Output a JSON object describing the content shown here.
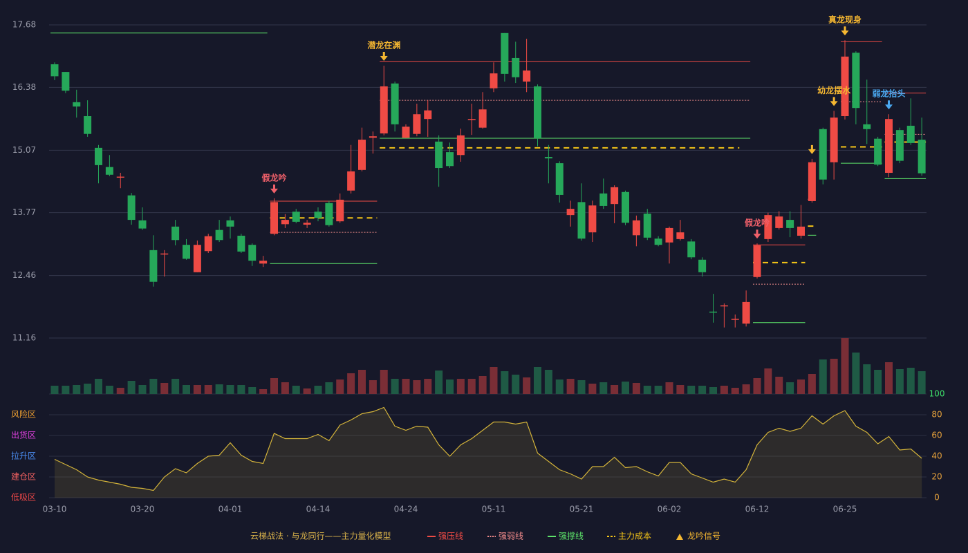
{
  "chart_data": [
    {
      "type": "candlestick",
      "categories": [
        "03-10",
        null,
        null,
        null,
        null,
        null,
        null,
        null,
        "03-20",
        null,
        null,
        null,
        null,
        null,
        null,
        null,
        "04-01",
        null,
        null,
        null,
        null,
        null,
        null,
        null,
        "04-14",
        null,
        null,
        null,
        null,
        null,
        null,
        null,
        "04-24",
        null,
        null,
        null,
        null,
        null,
        null,
        null,
        "05-11",
        null,
        null,
        null,
        null,
        null,
        null,
        null,
        "05-21",
        null,
        null,
        null,
        null,
        null,
        null,
        null,
        "06-02",
        null,
        null,
        null,
        null,
        null,
        null,
        null,
        "06-12",
        null,
        null,
        null,
        null,
        null,
        null,
        null,
        "06-25",
        null,
        null,
        null,
        null,
        null,
        null,
        null
      ],
      "open": [
        16.86,
        16.7,
        16.07,
        15.78,
        15.12,
        14.72,
        14.5,
        14.13,
        13.61,
        12.99,
        12.9,
        13.48,
        13.1,
        12.53,
        12.97,
        13.41,
        13.61,
        13.29,
        13.1,
        12.71,
        13.33,
        13.53,
        13.79,
        13.52,
        13.79,
        13.97,
        13.59,
        14.23,
        14.66,
        15.33,
        15.42,
        16.46,
        15.33,
        15.41,
        15.72,
        15.25,
        15.03,
        14.97,
        15.71,
        15.54,
        16.36,
        17.51,
        16.99,
        16.5,
        16.4,
        14.93,
        14.8,
        13.72,
        13.99,
        13.36,
        14.17,
        13.95,
        14.2,
        13.3,
        13.75,
        13.23,
        13.15,
        13.22,
        13.17,
        12.79,
        11.71,
        11.82,
        11.54,
        11.46,
        12.43,
        13.22,
        13.45,
        13.62,
        13.29,
        14.01,
        15.51,
        14.82,
        15.78,
        17.1,
        15.61,
        15.31,
        14.6,
        15.49,
        15.58,
        15.29
      ],
      "high": [
        16.9,
        16.7,
        16.33,
        16.11,
        15.18,
        14.97,
        14.6,
        14.18,
        13.88,
        13.3,
        12.99,
        13.62,
        13.22,
        13.19,
        13.33,
        13.62,
        13.69,
        13.33,
        13.13,
        12.87,
        14.07,
        13.74,
        13.85,
        13.62,
        13.88,
        14.02,
        14.17,
        15.18,
        15.54,
        15.46,
        16.83,
        16.5,
        15.61,
        16.04,
        16.11,
        15.38,
        15.23,
        15.52,
        16.04,
        16.28,
        16.9,
        17.51,
        17.33,
        17.39,
        16.44,
        15.18,
        14.84,
        14.02,
        14.38,
        14.02,
        14.48,
        14.34,
        14.23,
        13.71,
        13.85,
        13.28,
        13.48,
        13.62,
        13.22,
        12.84,
        12.08,
        11.88,
        11.65,
        12.15,
        13.13,
        13.77,
        13.8,
        13.8,
        13.93,
        14.89,
        15.54,
        15.89,
        17.36,
        17.13,
        16.54,
        15.35,
        15.82,
        15.54,
        16.15,
        15.75
      ],
      "low": [
        16.53,
        16.26,
        15.75,
        15.35,
        14.38,
        14.53,
        14.28,
        13.52,
        13.41,
        12.23,
        12.44,
        13.09,
        12.79,
        12.53,
        12.93,
        13.16,
        13.23,
        12.93,
        12.66,
        12.64,
        13.3,
        13.45,
        13.55,
        13.45,
        13.59,
        13.48,
        13.56,
        14.17,
        14.63,
        15.0,
        15.38,
        15.46,
        15.32,
        15.36,
        15.35,
        14.31,
        14.7,
        14.83,
        15.39,
        15.52,
        16.28,
        16.5,
        16.47,
        16.28,
        15.15,
        14.38,
        13.98,
        13.48,
        13.19,
        13.16,
        13.85,
        13.55,
        13.51,
        13.07,
        13.2,
        13.07,
        12.71,
        13.19,
        12.8,
        12.44,
        11.48,
        11.38,
        11.38,
        11.4,
        12.4,
        13.16,
        13.42,
        13.26,
        13.23,
        13.98,
        14.36,
        14.46,
        15.71,
        15.61,
        15.2,
        14.74,
        14.51,
        14.8,
        15.18,
        14.54
      ],
      "close": [
        16.61,
        16.31,
        15.98,
        15.41,
        14.76,
        14.56,
        14.52,
        13.62,
        13.44,
        12.33,
        12.92,
        13.2,
        12.81,
        13.1,
        13.28,
        13.2,
        13.48,
        12.96,
        12.77,
        12.77,
        13.99,
        13.62,
        13.58,
        13.56,
        13.66,
        13.51,
        14.04,
        14.63,
        15.29,
        15.36,
        16.4,
        15.61,
        15.56,
        15.82,
        15.9,
        14.7,
        14.74,
        15.38,
        15.72,
        15.92,
        16.67,
        16.66,
        16.59,
        16.73,
        15.32,
        14.9,
        14.14,
        13.85,
        13.23,
        13.92,
        13.91,
        14.3,
        13.56,
        13.61,
        13.25,
        13.1,
        13.45,
        13.36,
        12.84,
        12.53,
        11.69,
        11.84,
        11.56,
        11.91,
        13.09,
        13.72,
        13.69,
        13.45,
        13.48,
        14.82,
        14.46,
        15.75,
        17.02,
        15.95,
        15.51,
        14.77,
        15.72,
        14.85,
        15.22,
        14.59
      ],
      "up_color": "#ef4b45",
      "down_color": "#26a85a",
      "ylim": [
        11.16,
        17.68
      ],
      "yticks": [
        11.16,
        12.46,
        13.77,
        15.07,
        16.38,
        17.68
      ],
      "grid": true,
      "legend_title": "云梯战法 · 与龙同行——主力量化模型",
      "legend": [
        {
          "name": "强压线",
          "color": "#ef4b45",
          "dash": "solid",
          "levels": [
            {
              "value": 14.01,
              "from": 20,
              "to": 29
            },
            {
              "value": 16.92,
              "from": 30,
              "to": 63
            },
            {
              "value": 13.1,
              "from": 64,
              "to": 68
            },
            {
              "value": 17.33,
              "from": 72,
              "to": 75
            },
            {
              "value": 16.26,
              "from": 76,
              "to": 79
            }
          ]
        },
        {
          "name": "强弱线",
          "color": "#f08a8a",
          "dash": "dotted",
          "levels": [
            {
              "value": 13.36,
              "from": 20,
              "to": 29
            },
            {
              "value": 16.11,
              "from": 30,
              "to": 63
            },
            {
              "value": 12.28,
              "from": 64,
              "to": 68
            },
            {
              "value": 14.05,
              "from": 69,
              "to": 69
            },
            {
              "value": 16.08,
              "from": 72,
              "to": 75
            },
            {
              "value": 15.4,
              "from": 76,
              "to": 79
            }
          ]
        },
        {
          "name": "强撑线",
          "color": "#5de36a",
          "dash": "solid",
          "levels": [
            {
              "value": 17.51,
              "from": 0,
              "to": 19
            },
            {
              "value": 12.71,
              "from": 20,
              "to": 29
            },
            {
              "value": 15.32,
              "from": 30,
              "to": 63
            },
            {
              "value": 11.48,
              "from": 64,
              "to": 68
            },
            {
              "value": 13.3,
              "from": 69,
              "to": 69
            },
            {
              "value": 14.8,
              "from": 72,
              "to": 75
            },
            {
              "value": 14.48,
              "from": 76,
              "to": 79
            }
          ]
        },
        {
          "name": "主力成本",
          "color": "#f5c518",
          "dash": "dashed",
          "levels": [
            {
              "value": 13.66,
              "from": 20,
              "to": 29
            },
            {
              "value": 15.12,
              "from": 30,
              "to": 62
            },
            {
              "value": 12.73,
              "from": 64,
              "to": 68
            },
            {
              "value": 13.49,
              "from": 69,
              "to": 69
            },
            {
              "value": 15.14,
              "from": 72,
              "to": 75
            },
            {
              "value": 15.24,
              "from": 76,
              "to": 79
            }
          ]
        },
        {
          "name": "龙吟信号",
          "color": "#f5b731",
          "dash": "triangle"
        }
      ],
      "signals": [
        {
          "index": 20,
          "text": "假龙吟",
          "color": "#f0606a"
        },
        {
          "index": 30,
          "text": "潜龙在渊",
          "color": "#f5b731"
        },
        {
          "index": 64,
          "text": "假龙吟",
          "color": "#f0606a"
        },
        {
          "index": 69,
          "color": "#f5b731"
        },
        {
          "index": 71,
          "text": "幼龙摆水",
          "color": "#f5b731"
        },
        {
          "index": 72,
          "text": "真龙现身",
          "color": "#f5b731"
        },
        {
          "index": 76,
          "text": "弱龙抬头",
          "color": "#4aa8f0"
        }
      ]
    },
    {
      "type": "bar",
      "values": [
        12,
        12,
        13,
        15,
        22,
        12,
        9,
        19,
        13,
        22,
        16,
        22,
        13,
        13,
        13,
        14,
        13,
        13,
        10,
        7,
        23,
        17,
        12,
        8,
        12,
        17,
        21,
        30,
        35,
        20,
        35,
        22,
        22,
        20,
        22,
        34,
        21,
        22,
        22,
        26,
        39,
        33,
        28,
        24,
        39,
        35,
        21,
        22,
        20,
        15,
        17,
        13,
        18,
        16,
        12,
        12,
        17,
        13,
        12,
        12,
        10,
        12,
        9,
        14,
        23,
        37,
        25,
        17,
        21,
        29,
        50,
        51,
        81,
        60,
        43,
        35,
        46,
        36,
        38,
        33
      ],
      "up_color": "#7a2e36",
      "down_color": "#1f5a45"
    },
    {
      "type": "area",
      "values": [
        37,
        32,
        27,
        20,
        17,
        15,
        13,
        10,
        9,
        7,
        20,
        28,
        24,
        33,
        40,
        41,
        53,
        41,
        35,
        33,
        62,
        57,
        57,
        57,
        61,
        55,
        70,
        75,
        81,
        83,
        87,
        69,
        65,
        69,
        68,
        51,
        40,
        51,
        57,
        65,
        73,
        73,
        71,
        73,
        43,
        35,
        27,
        23,
        18,
        30,
        30,
        39,
        29,
        30,
        25,
        21,
        34,
        34,
        23,
        19,
        15,
        18,
        15,
        27,
        51,
        63,
        67,
        64,
        67,
        79,
        71,
        79,
        84,
        69,
        63,
        52,
        59,
        46,
        47,
        38
      ],
      "color": "#d4b43a",
      "ylim": [
        0,
        100
      ],
      "yticks": [
        0,
        20,
        40,
        60,
        80,
        100
      ],
      "zones": [
        {
          "value": 80,
          "label": "风险区",
          "color": "#f0a030"
        },
        {
          "value": 60,
          "label": "出货区",
          "color": "#e040e0"
        },
        {
          "value": 40,
          "label": "拉升区",
          "color": "#4a8cf0"
        },
        {
          "value": 20,
          "label": "建仓区",
          "color": "#f06060"
        },
        {
          "value": 0,
          "label": "低吸区",
          "color": "#f04848"
        }
      ]
    }
  ]
}
